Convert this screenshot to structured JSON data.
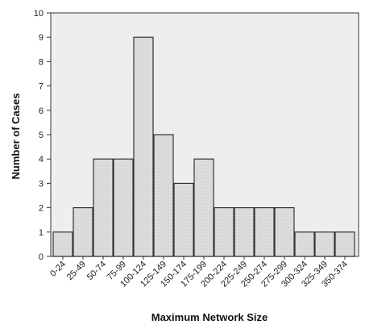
{
  "chart_data": {
    "type": "bar",
    "title": "",
    "xlabel": "Maximum Network Size",
    "ylabel": "Number of Cases",
    "categories": [
      "0-24",
      "25-49",
      "50-74",
      "75-99",
      "100-124",
      "125-149",
      "150-174",
      "175-199",
      "200-224",
      "225-249",
      "250-274",
      "275-299",
      "300-324",
      "325-349",
      "350-374"
    ],
    "values": [
      1,
      2,
      4,
      4,
      9,
      5,
      3,
      4,
      2,
      2,
      2,
      2,
      1,
      1,
      1
    ],
    "ylim": [
      0,
      10
    ],
    "yticks": [
      0,
      1,
      2,
      3,
      4,
      5,
      6,
      7,
      8,
      9,
      10
    ],
    "grid": false,
    "legend": "none",
    "colors": {
      "bar_fill": "#dcdcdc",
      "bar_stroke": "#333333",
      "plot_bg": "#eeeeee",
      "frame": "#555555"
    }
  }
}
